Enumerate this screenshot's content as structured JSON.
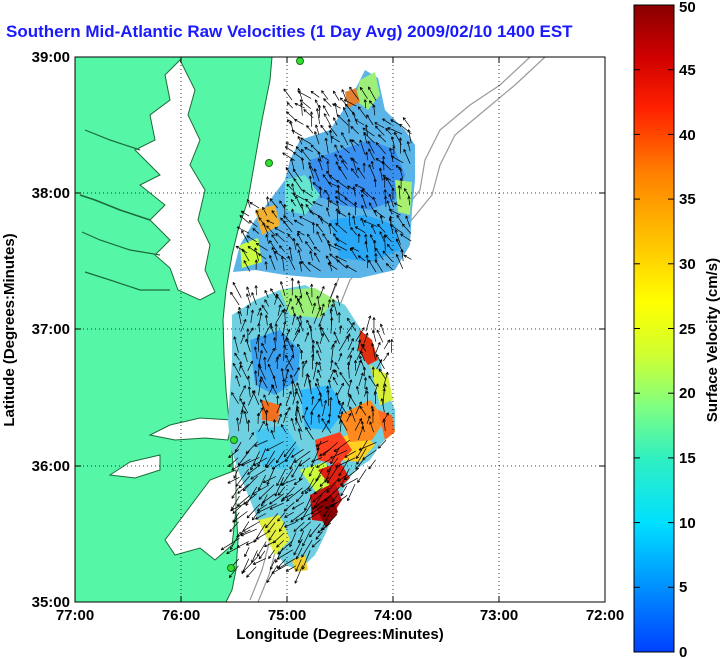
{
  "title": "Southern Mid-Atlantic Raw Velocities (1 Day Avg) 2009/02/10 1400 EST",
  "map": {
    "xlabel": "Longitude (Degrees:Minutes)",
    "ylabel": "Latitude (Degrees:Minutes)",
    "lon_ticks": [
      "77:00",
      "76:00",
      "75:00",
      "74:00",
      "73:00",
      "72:00"
    ],
    "lat_ticks": [
      "39:00",
      "38:00",
      "37:00",
      "36:00",
      "35:00"
    ],
    "lon_range": [
      -77,
      -72
    ],
    "lat_range": [
      35,
      39
    ],
    "colors": {
      "land": "#55f7a6",
      "coast_line": "#1c6b3a",
      "bathymetry": "#9a9a9a",
      "grid": "#000000",
      "station": "#33dd33",
      "title": "#1a1aff"
    }
  },
  "colorbar": {
    "label": "Surface Velocity (cm/s)",
    "ticks": [
      "0",
      "5",
      "10",
      "15",
      "20",
      "25",
      "30",
      "35",
      "40",
      "45",
      "50"
    ],
    "range": [
      0,
      50
    ],
    "colors": [
      "#0040ff",
      "#0090ff",
      "#00e0ff",
      "#30f0c0",
      "#80ff80",
      "#d0ff30",
      "#ffff00",
      "#ffc000",
      "#ff8000",
      "#ff2000",
      "#d00000",
      "#8a0000"
    ]
  }
}
